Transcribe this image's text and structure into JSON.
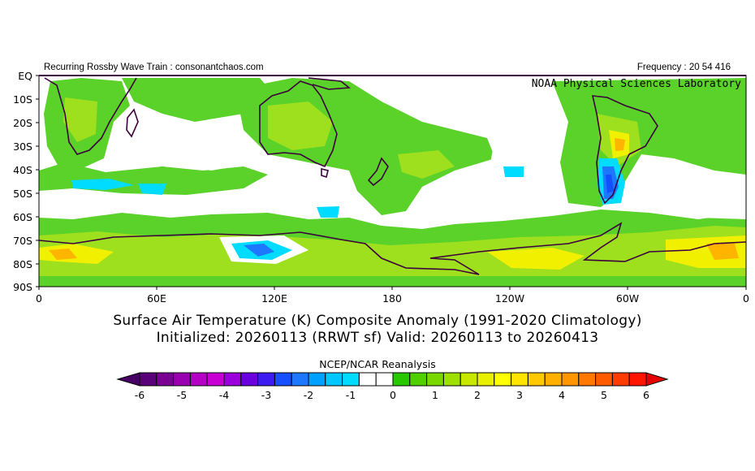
{
  "header": {
    "left_text": "Recurring Rossby Wave Train : consonantchaos.com",
    "right_text": "Frequency : 20 54 416",
    "lab_text": "NOAA Physical Sciences Laboratory"
  },
  "map": {
    "latitude_labels": [
      "EQ",
      "10S",
      "20S",
      "30S",
      "40S",
      "50S",
      "60S",
      "70S",
      "80S",
      "90S"
    ],
    "longitude_labels": [
      "0",
      "60E",
      "120E",
      "180",
      "120W",
      "60W",
      "0"
    ],
    "projection": "cylindrical equidistant",
    "extent": {
      "lon_min": 0,
      "lon_max": 360,
      "lat_min": -90,
      "lat_max": 0
    },
    "anomaly_regions": [
      {
        "region": "Southern Ocean / Antarctic coast 0-180E",
        "anomaly_K": 1.5
      },
      {
        "region": "Weddell Sea / Antarctic Peninsula",
        "anomaly_K": 3.5
      },
      {
        "region": "Central Antarctica 0-40E",
        "anomaly_K": 3.0
      },
      {
        "region": "Australia",
        "anomaly_K": 1.5
      },
      {
        "region": "Southern Africa",
        "anomaly_K": 1.0
      },
      {
        "region": "Central South America",
        "anomaly_K": 2.5
      },
      {
        "region": "Southern Patagonia",
        "anomaly_K": -2.5
      },
      {
        "region": "Indian Ocean 40S",
        "anomaly_K": -0.7
      },
      {
        "region": "Southern Ocean near 120E 75S",
        "anomaly_K": -1.5
      }
    ]
  },
  "titles": {
    "line1": "Surface Air Temperature (K) Composite Anomaly (1991-2020 Climatology)",
    "line2": "Initialized: 20260113 (RRWT sf) Valid: 20260113 to 20260413",
    "source": "NCEP/NCAR Reanalysis"
  },
  "colorbar": {
    "tick_labels": [
      "-6",
      "-5",
      "-4",
      "-3",
      "-2",
      "-1",
      "0",
      "1",
      "2",
      "3",
      "4",
      "5",
      "6"
    ],
    "colors": [
      "#5a0078",
      "#7a0094",
      "#9a00b0",
      "#b400c4",
      "#c800d4",
      "#9a00dc",
      "#6a00e0",
      "#3c1cf0",
      "#1450ff",
      "#1e78ff",
      "#00a0ff",
      "#00c8ff",
      "#00dcff",
      "#ffffff",
      "#ffffff",
      "#28c800",
      "#50d000",
      "#78d800",
      "#a0e000",
      "#c8e800",
      "#e8f000",
      "#ffff00",
      "#ffe400",
      "#ffc800",
      "#ffb000",
      "#ff9600",
      "#ff7800",
      "#ff5a00",
      "#ff3c00",
      "#ff1400"
    ],
    "under_color": "#460064",
    "over_color": "#e60000",
    "min": -6,
    "max": 6
  }
}
